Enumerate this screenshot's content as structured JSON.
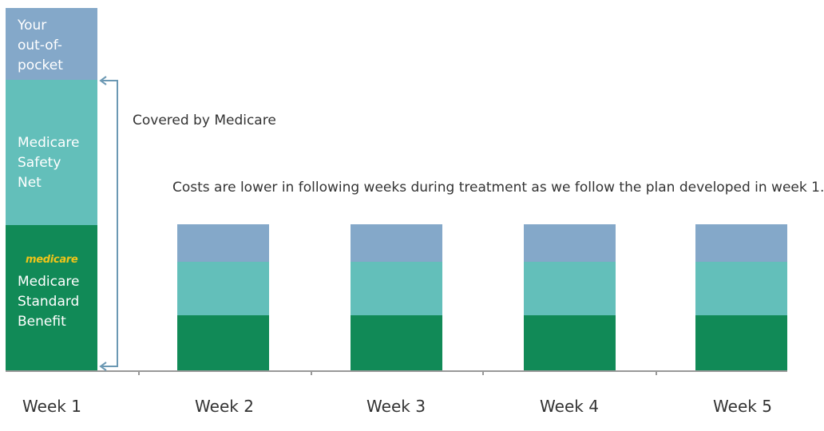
{
  "chart_data": {
    "type": "bar",
    "stacked": true,
    "categories": [
      "Week 1",
      "Week 2",
      "Week 3",
      "Week 4",
      "Week 5"
    ],
    "series": [
      {
        "name": "Medicare Standard Benefit",
        "color": "#118a57",
        "values": [
          183,
          70,
          70,
          70,
          70
        ]
      },
      {
        "name": "Medicare Safety Net",
        "color": "#63bfba",
        "values": [
          182,
          67,
          67,
          67,
          67
        ]
      },
      {
        "name": "Your out-of-pocket",
        "color": "#84a8c9",
        "values": [
          90,
          47,
          47,
          47,
          47
        ]
      }
    ],
    "segment_labels": {
      "out_of_pocket": "Your\nout-of-\npocket",
      "safety_net": "Medicare\nSafety\nNet",
      "standard_benefit": "Medicare\nStandard\nBenefit"
    },
    "brand_text": "medicare",
    "annotations": {
      "covered": "Covered by Medicare",
      "note": "Costs are lower in following weeks during treatment as we follow the plan developed in week 1."
    },
    "axis_color": "#999999",
    "bracket_color": "#6b98b3",
    "grid": false
  }
}
